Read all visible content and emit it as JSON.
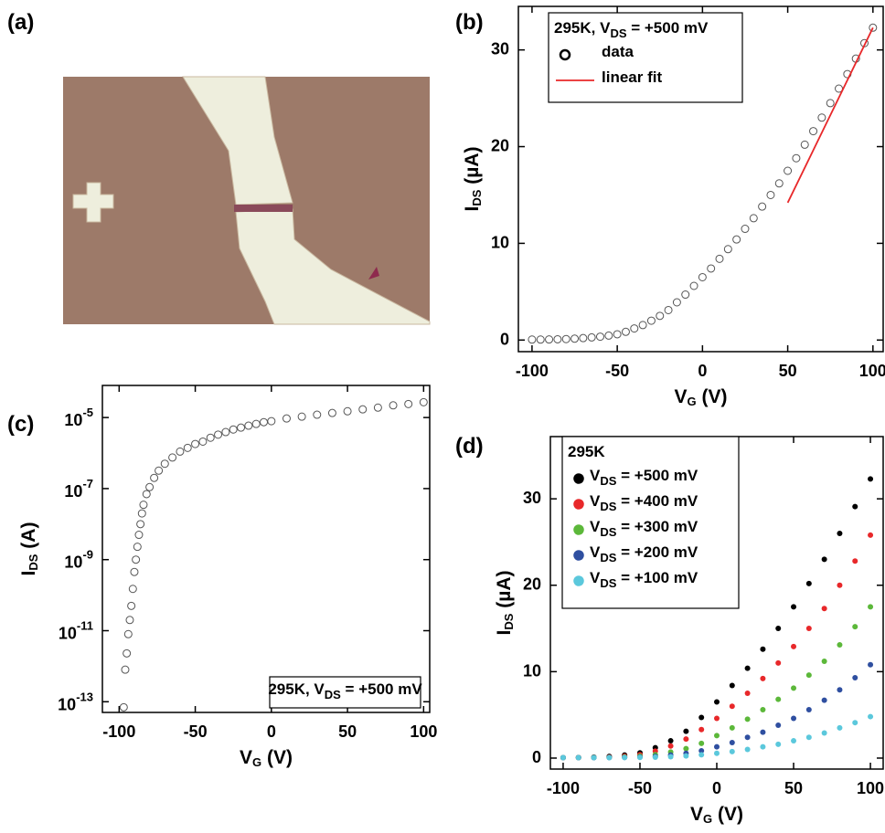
{
  "image_panel": {
    "label": "(a)"
  },
  "chart_data": [
    {
      "type": "scatter",
      "label": "(b)",
      "xlabel": "V_G (V)",
      "ylabel": "I_DS (µA)",
      "legend_title": "295K, V_DS = +500 mV",
      "xlim": [
        -108,
        106
      ],
      "ylim": [
        -1.2,
        34.5
      ],
      "xticks": [
        -100,
        -50,
        0,
        50,
        100
      ],
      "yticks": [
        0,
        10,
        20,
        30
      ],
      "series": [
        {
          "name": "data",
          "mode": "open-circle",
          "color": "#555555",
          "x": [
            -100,
            -95,
            -90,
            -85,
            -80,
            -75,
            -70,
            -65,
            -60,
            -55,
            -50,
            -45,
            -40,
            -35,
            -30,
            -25,
            -20,
            -15,
            -10,
            -5,
            0,
            5,
            10,
            15,
            20,
            25,
            30,
            35,
            40,
            45,
            50,
            55,
            60,
            65,
            70,
            75,
            80,
            85,
            90,
            95,
            100
          ],
          "values": [
            0.05,
            0.05,
            0.06,
            0.08,
            0.1,
            0.14,
            0.2,
            0.27,
            0.35,
            0.46,
            0.6,
            0.85,
            1.2,
            1.55,
            2.0,
            2.5,
            3.1,
            3.9,
            4.7,
            5.6,
            6.5,
            7.4,
            8.4,
            9.4,
            10.4,
            11.5,
            12.6,
            13.8,
            15.0,
            16.2,
            17.5,
            18.8,
            20.2,
            21.6,
            23.0,
            24.5,
            26.0,
            27.5,
            29.1,
            30.7,
            32.3
          ]
        },
        {
          "name": "linear fit",
          "mode": "line",
          "color": "#e8282a",
          "x": [
            50,
            100
          ],
          "values": [
            14.2,
            32.3
          ]
        }
      ]
    },
    {
      "type": "scatter",
      "label": "(c)",
      "xlabel": "V_G (V)",
      "ylabel": "I_DS (A)",
      "annotation": "295K, V_DS = +500 mV",
      "log_y": true,
      "xlim": [
        -111,
        104
      ],
      "ylim": [
        5e-14,
        8e-05
      ],
      "xticks": [
        -100,
        -50,
        0,
        50,
        100
      ],
      "yticks": [
        {
          "value": 1e-13,
          "label": "10^-13"
        },
        {
          "value": 1e-11,
          "label": "10^-11"
        },
        {
          "value": 1e-09,
          "label": "10^-9"
        },
        {
          "value": 1e-07,
          "label": "10^-7"
        },
        {
          "value": 1e-05,
          "label": "10^-5"
        }
      ],
      "series": [
        {
          "mode": "open-circle",
          "color": "#555555",
          "x": [
            -97,
            -96,
            -95,
            -94,
            -93,
            -92,
            -91,
            -90,
            -89,
            -88,
            -87,
            -86,
            -85,
            -84,
            -82,
            -80,
            -77,
            -74,
            -70,
            -65,
            -60,
            -55,
            -50,
            -45,
            -40,
            -35,
            -30,
            -25,
            -20,
            -15,
            -10,
            -5,
            0,
            10,
            20,
            30,
            40,
            50,
            60,
            70,
            80,
            90,
            100
          ],
          "values": [
            7e-14,
            8e-13,
            2.3e-12,
            8e-12,
            2e-11,
            5e-11,
            1.5e-10,
            4.5e-10,
            1e-09,
            2.3e-09,
            5e-09,
            1e-08,
            2e-08,
            3.5e-08,
            7e-08,
            1.1e-07,
            2e-07,
            3.2e-07,
            5e-07,
            7.5e-07,
            1.1e-06,
            1.4e-06,
            1.8e-06,
            2.1e-06,
            2.7e-06,
            3.3e-06,
            3.9e-06,
            4.6e-06,
            5.2e-06,
            5.9e-06,
            6.6e-06,
            7.4e-06,
            7.9e-06,
            9.4e-06,
            1.06e-05,
            1.2e-05,
            1.34e-05,
            1.5e-05,
            1.7e-05,
            1.9e-05,
            2.2e-05,
            2.4e-05,
            2.7e-05
          ]
        }
      ]
    },
    {
      "type": "scatter",
      "label": "(d)",
      "xlabel": "V_G (V)",
      "ylabel": "I_DS (µA)",
      "legend_title": "295K",
      "xlim": [
        -108.3,
        108.3
      ],
      "ylim": [
        -1.27,
        37.2
      ],
      "xticks": [
        -100,
        -50,
        0,
        50,
        100
      ],
      "yticks": [
        0,
        10,
        20,
        30
      ],
      "series": [
        {
          "name": "V_DS = +500 mV",
          "mode": "dot",
          "color": "#000000",
          "x": [
            -100,
            -90,
            -80,
            -70,
            -60,
            -50,
            -40,
            -30,
            -20,
            -10,
            0,
            10,
            20,
            30,
            40,
            50,
            60,
            70,
            80,
            90,
            100
          ],
          "values": [
            0.05,
            0.06,
            0.1,
            0.2,
            0.35,
            0.6,
            1.2,
            2.0,
            3.1,
            4.7,
            6.5,
            8.4,
            10.4,
            12.6,
            15.0,
            17.5,
            20.2,
            23.0,
            26.0,
            29.1,
            32.3
          ]
        },
        {
          "name": "V_DS = +400 mV",
          "mode": "dot",
          "color": "#e8282a",
          "x": [
            -100,
            -90,
            -80,
            -70,
            -60,
            -50,
            -40,
            -30,
            -20,
            -10,
            0,
            10,
            20,
            30,
            40,
            50,
            60,
            70,
            80,
            90,
            100
          ],
          "values": [
            0.05,
            0.05,
            0.07,
            0.12,
            0.22,
            0.4,
            0.8,
            1.4,
            2.2,
            3.3,
            4.6,
            6.0,
            7.5,
            9.2,
            11.0,
            12.9,
            15.0,
            17.3,
            20.0,
            22.8,
            25.8
          ]
        },
        {
          "name": "V_DS = +300 mV",
          "mode": "dot",
          "color": "#5cb83a",
          "x": [
            -100,
            -90,
            -80,
            -70,
            -60,
            -50,
            -40,
            -30,
            -20,
            -10,
            0,
            10,
            20,
            30,
            40,
            50,
            60,
            70,
            80,
            90,
            100
          ],
          "values": [
            0.05,
            0.05,
            0.06,
            0.08,
            0.13,
            0.22,
            0.4,
            0.7,
            1.1,
            1.7,
            2.6,
            3.5,
            4.5,
            5.6,
            6.8,
            8.1,
            9.6,
            11.2,
            13.1,
            15.2,
            17.5
          ]
        },
        {
          "name": "V_DS = +200 mV",
          "mode": "dot",
          "color": "#2f4fa0",
          "x": [
            -100,
            -90,
            -80,
            -70,
            -60,
            -50,
            -40,
            -30,
            -20,
            -10,
            0,
            10,
            20,
            30,
            40,
            50,
            60,
            70,
            80,
            90,
            100
          ],
          "values": [
            0.05,
            0.05,
            0.05,
            0.06,
            0.08,
            0.12,
            0.2,
            0.35,
            0.55,
            0.85,
            1.3,
            1.8,
            2.4,
            3.0,
            3.8,
            4.6,
            5.6,
            6.7,
            7.9,
            9.3,
            10.8
          ]
        },
        {
          "name": "V_DS = +100 mV",
          "mode": "dot",
          "color": "#5bc8dc",
          "x": [
            -100,
            -90,
            -80,
            -70,
            -60,
            -50,
            -40,
            -30,
            -20,
            -10,
            0,
            10,
            20,
            30,
            40,
            50,
            60,
            70,
            80,
            90,
            100
          ],
          "values": [
            0.05,
            0.05,
            0.05,
            0.05,
            0.06,
            0.08,
            0.1,
            0.16,
            0.25,
            0.38,
            0.55,
            0.75,
            1.0,
            1.3,
            1.6,
            2.0,
            2.4,
            2.9,
            3.5,
            4.1,
            4.8
          ]
        }
      ]
    }
  ]
}
